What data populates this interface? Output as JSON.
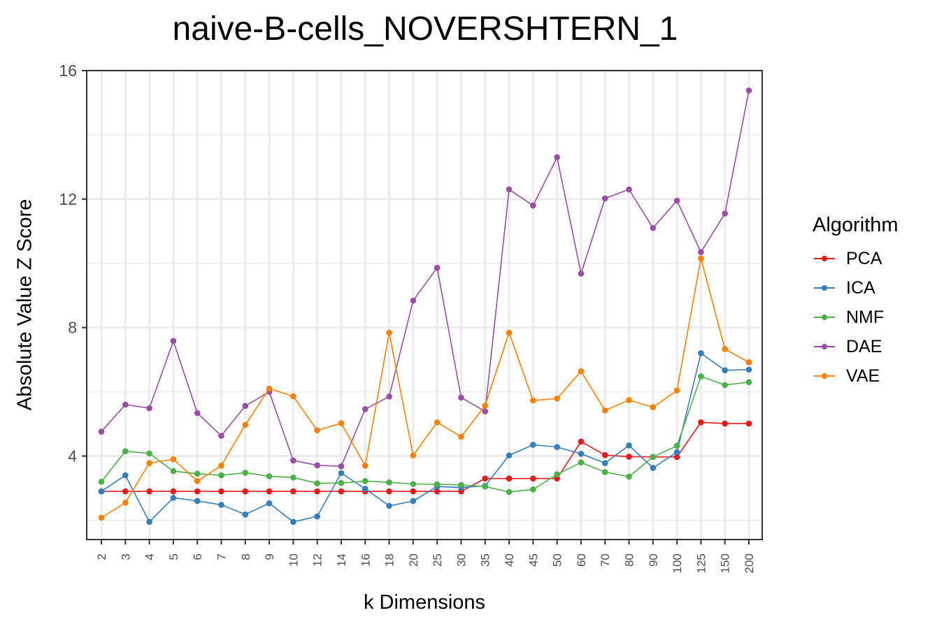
{
  "chart_data": {
    "type": "line",
    "title": "naive-B-cells_NOVERSHTERN_1",
    "xlabel": "k Dimensions",
    "ylabel": "Absolute Value Z Score",
    "categories": [
      "2",
      "3",
      "4",
      "5",
      "6",
      "7",
      "8",
      "9",
      "10",
      "12",
      "14",
      "16",
      "18",
      "20",
      "25",
      "30",
      "35",
      "40",
      "45",
      "50",
      "60",
      "70",
      "80",
      "90",
      "100",
      "125",
      "150",
      "200"
    ],
    "ylim": [
      1.4,
      16
    ],
    "yticks": [
      4,
      8,
      12,
      16
    ],
    "grid": true,
    "legend_title": "Algorithm",
    "legend_position": "right",
    "series": [
      {
        "name": "PCA",
        "color": "#e41a1c",
        "values": [
          2.9,
          2.9,
          2.9,
          2.9,
          2.9,
          2.9,
          2.9,
          2.9,
          2.9,
          2.9,
          2.9,
          2.9,
          2.9,
          2.9,
          2.9,
          2.9,
          3.3,
          3.3,
          3.3,
          3.3,
          4.45,
          4.03,
          3.98,
          3.97,
          3.97,
          5.05,
          5.01,
          5.01
        ]
      },
      {
        "name": "ICA",
        "color": "#377eb8",
        "values": [
          2.9,
          3.4,
          1.95,
          2.7,
          2.6,
          2.48,
          2.18,
          2.53,
          1.95,
          2.12,
          3.47,
          2.98,
          2.45,
          2.6,
          3.05,
          3.02,
          3.07,
          4.02,
          4.35,
          4.28,
          4.07,
          3.78,
          4.33,
          3.63,
          4.12,
          7.2,
          6.67,
          6.69
        ]
      },
      {
        "name": "NMF",
        "color": "#4daf4a",
        "values": [
          3.2,
          4.15,
          4.08,
          3.53,
          3.45,
          3.4,
          3.48,
          3.37,
          3.33,
          3.15,
          3.16,
          3.22,
          3.18,
          3.13,
          3.12,
          3.1,
          3.05,
          2.88,
          2.96,
          3.43,
          3.8,
          3.5,
          3.36,
          3.97,
          4.32,
          6.48,
          6.21,
          6.3
        ]
      },
      {
        "name": "DAE",
        "color": "#984ea3",
        "values": [
          4.76,
          5.6,
          5.49,
          7.58,
          5.34,
          4.63,
          5.56,
          6.0,
          3.86,
          3.71,
          3.68,
          5.46,
          5.85,
          8.84,
          9.86,
          5.82,
          5.39,
          12.3,
          11.8,
          13.3,
          9.68,
          12.02,
          12.3,
          11.1,
          11.95,
          10.35,
          11.55,
          15.38
        ]
      },
      {
        "name": "VAE",
        "color": "#ff7f00",
        "values": [
          2.08,
          2.55,
          3.78,
          3.9,
          3.22,
          3.7,
          4.97,
          6.1,
          5.86,
          4.8,
          5.02,
          3.7,
          7.84,
          4.02,
          5.05,
          4.6,
          5.57,
          7.84,
          5.73,
          5.79,
          6.64,
          5.42,
          5.74,
          5.52,
          6.04,
          10.15,
          7.33,
          6.92
        ]
      }
    ]
  }
}
